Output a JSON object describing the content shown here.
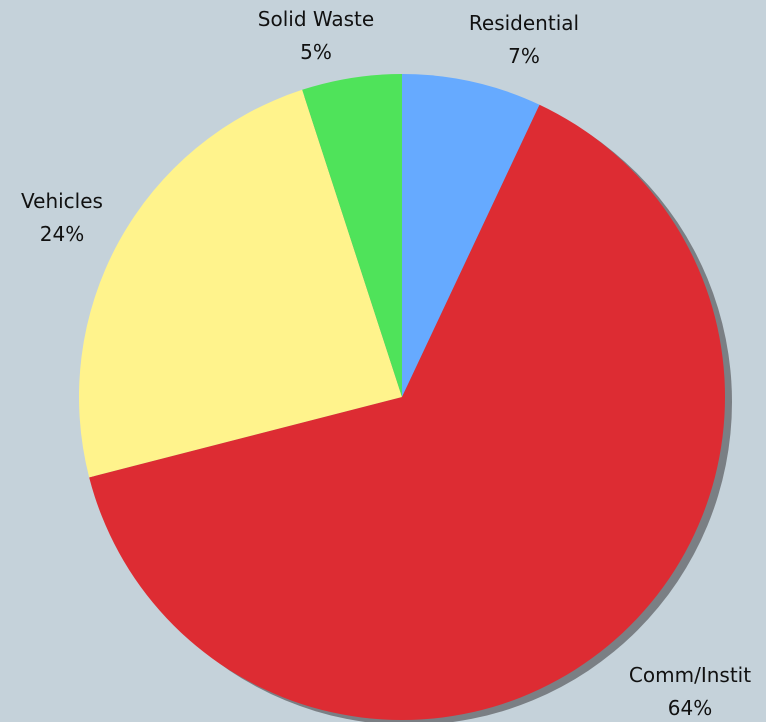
{
  "chart_data": {
    "type": "pie",
    "title": "",
    "start_angle_deg": 0,
    "direction": "clockwise",
    "slices": [
      {
        "label": "Residential",
        "value": 7,
        "value_label": "7%",
        "color": "#66aaff"
      },
      {
        "label": "Comm/Instit",
        "value": 64,
        "value_label": "64%",
        "color": "#dd2c33"
      },
      {
        "label": "Vehicles",
        "value": 24,
        "value_label": "24%",
        "color": "#fff38c"
      },
      {
        "label": "Solid Waste",
        "value": 5,
        "value_label": "5%",
        "color": "#4fe35a"
      }
    ],
    "shadow": true,
    "legend": "none"
  }
}
